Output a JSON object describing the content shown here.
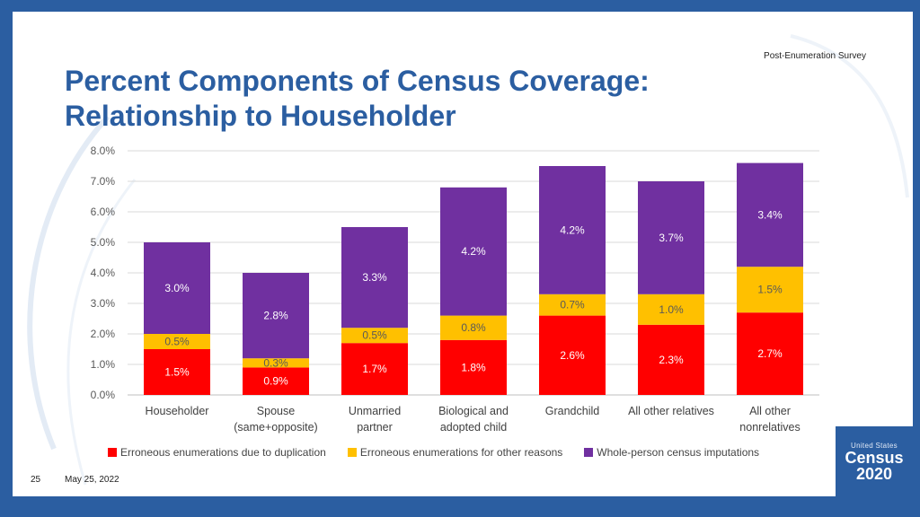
{
  "header": {
    "tag": "Post-Enumeration  Survey",
    "title": "Percent Components of Census Coverage: Relationship to Householder"
  },
  "colors": {
    "duplication": "#ff0000",
    "other": "#ffc000",
    "imputation": "#7030a0",
    "brand": "#2b5ea1"
  },
  "chart_data": {
    "type": "bar",
    "stacked": true,
    "categories": [
      [
        "Householder"
      ],
      [
        "Spouse",
        "(same+opposite)"
      ],
      [
        "Unmarried",
        "partner"
      ],
      [
        "Biological and",
        "adopted child"
      ],
      [
        "Grandchild"
      ],
      [
        "All other relatives"
      ],
      [
        "All other",
        "nonrelatives"
      ]
    ],
    "series": [
      {
        "name": "Erroneous enumerations due to duplication",
        "color": "#ff0000",
        "values": [
          1.5,
          0.9,
          1.7,
          1.8,
          2.6,
          2.3,
          2.7
        ],
        "labels": [
          "1.5%",
          "0.9%",
          "1.7%",
          "1.8%",
          "2.6%",
          "2.3%",
          "2.7%"
        ]
      },
      {
        "name": "Erroneous enumerations for other reasons",
        "color": "#ffc000",
        "values": [
          0.5,
          0.3,
          0.5,
          0.8,
          0.7,
          1.0,
          1.5
        ],
        "labels": [
          "0.5%",
          "0.3%",
          "0.5%",
          "0.8%",
          "0.7%",
          "1.0%",
          "1.5%"
        ]
      },
      {
        "name": "Whole-person census imputations",
        "color": "#7030a0",
        "values": [
          3.0,
          2.8,
          3.3,
          4.2,
          4.2,
          3.7,
          3.4
        ],
        "labels": [
          "3.0%",
          "2.8%",
          "3.3%",
          "4.2%",
          "4.2%",
          "3.7%",
          "3.4%"
        ]
      }
    ],
    "totals": [
      5.0,
      4.0,
      5.5,
      6.8,
      7.5,
      7.0,
      7.6
    ],
    "ylim": [
      0,
      8
    ],
    "yticks": [
      "0.0%",
      "1.0%",
      "2.0%",
      "3.0%",
      "4.0%",
      "5.0%",
      "6.0%",
      "7.0%",
      "8.0%"
    ],
    "grid": true,
    "legend_position": "bottom"
  },
  "footer": {
    "slide_number": "25",
    "date": "May 25, 2022"
  },
  "logo": {
    "top": "United States",
    "name": "Census",
    "year": "2020"
  }
}
